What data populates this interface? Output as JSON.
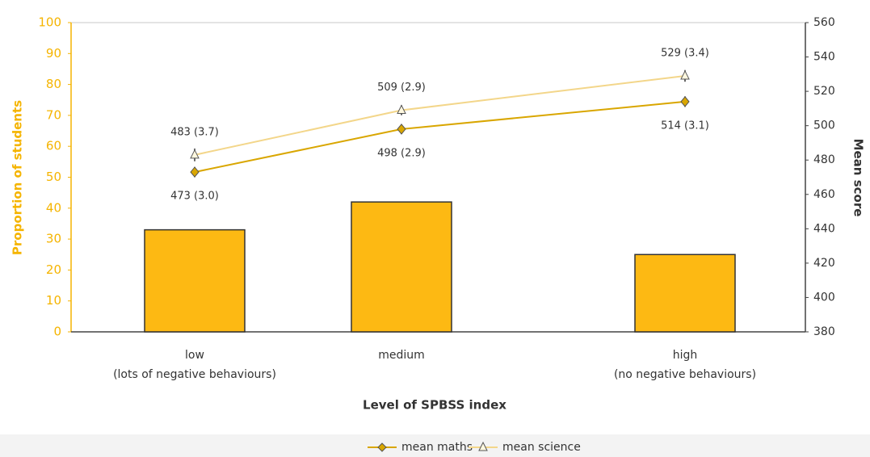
{
  "chart_data": {
    "type": "bar_line",
    "x_label": "Level of SPBSS index",
    "y_label": "Proportion of students",
    "y2_label": "Mean score",
    "categories": [
      [
        "low",
        "(lots of negative behaviours)"
      ],
      [
        "medium"
      ],
      [
        "high",
        "(no negative behaviours)"
      ]
    ],
    "values": [
      33,
      42,
      25
    ],
    "color": "#fdb913",
    "ylim": [
      0,
      100
    ],
    "yticks": [
      0,
      10,
      20,
      30,
      40,
      50,
      60,
      70,
      80,
      90,
      100
    ],
    "y2lim": [
      380,
      560
    ],
    "y2ticks": [
      380,
      400,
      420,
      440,
      460,
      480,
      500,
      520,
      540,
      560
    ],
    "series": [
      {
        "name": "mean maths",
        "color": "#d9a600",
        "marker": "diamond",
        "axis": "y2",
        "values": [
          473,
          498,
          514
        ],
        "errors": [
          3.0,
          2.9,
          3.1
        ],
        "value_labels": [
          "473 (3.0)",
          "498 (2.9)",
          "514 (3.1)"
        ]
      },
      {
        "name": "mean science",
        "color": "#f3d68a",
        "marker": "triangle",
        "axis": "y2",
        "values": [
          483,
          509,
          529
        ],
        "errors": [
          3.7,
          2.9,
          3.4
        ],
        "value_labels": [
          "483 (3.7)",
          "509 (2.9)",
          "529 (3.4)"
        ]
      }
    ],
    "legend": "bottom"
  }
}
